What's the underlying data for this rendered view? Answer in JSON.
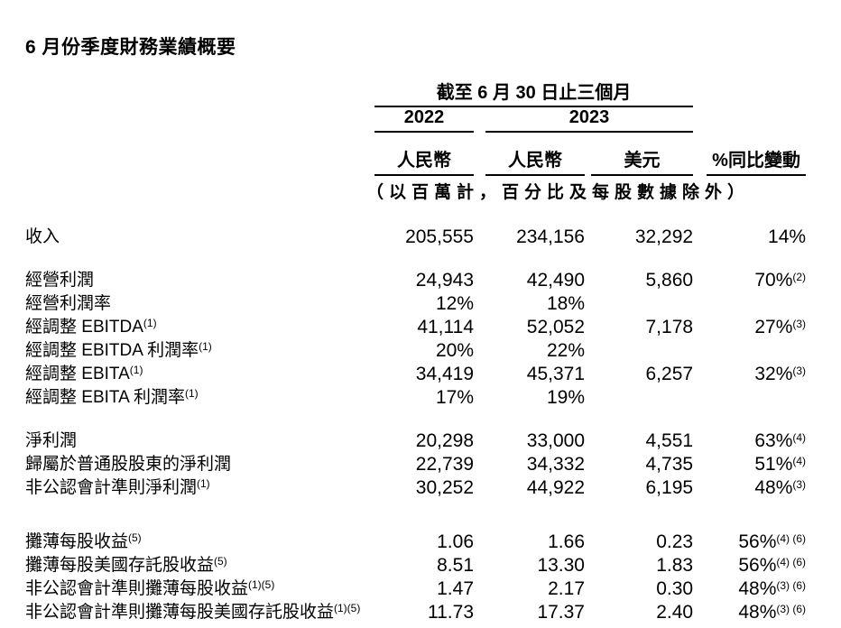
{
  "page": {
    "title": "6 月份季度財務業績概要",
    "background_color": "#ffffff",
    "text_color": "#000000",
    "rule_color": "#000000"
  },
  "table": {
    "period_header": "截至 6 月 30 日止三個月",
    "year_headers": [
      "2022",
      "2023"
    ],
    "column_headers": [
      "人民幣",
      "人民幣",
      "美元",
      "%同比變動"
    ],
    "units_note": "（以百萬計，百分比及每股數據除外）",
    "rows": [
      {
        "label": "收入",
        "label_sup": "",
        "values": [
          "205,555",
          "234,156",
          "32,292"
        ],
        "yoy": "14%",
        "yoy_sup": "",
        "gap_before": 22
      },
      {
        "label": "經營利潤",
        "label_sup": "",
        "values": [
          "24,943",
          "42,490",
          "5,860"
        ],
        "yoy": "70%",
        "yoy_sup": "(2)",
        "gap_before": 22
      },
      {
        "label": "經營利潤率",
        "label_sup": "",
        "values": [
          "12%",
          "18%",
          ""
        ],
        "yoy": "",
        "yoy_sup": "",
        "gap_before": 0
      },
      {
        "label": "經調整 EBITDA",
        "label_sup": "(1)",
        "values": [
          "41,114",
          "52,052",
          "7,178"
        ],
        "yoy": "27%",
        "yoy_sup": "(3)",
        "gap_before": 0
      },
      {
        "label": "經調整 EBITDA 利潤率",
        "label_sup": "(1)",
        "values": [
          "20%",
          "22%",
          ""
        ],
        "yoy": "",
        "yoy_sup": "",
        "gap_before": 0
      },
      {
        "label": "經調整 EBITA",
        "label_sup": "(1)",
        "values": [
          "34,419",
          "45,371",
          "6,257"
        ],
        "yoy": "32%",
        "yoy_sup": "(3)",
        "gap_before": 0
      },
      {
        "label": "經調整 EBITA 利潤率",
        "label_sup": "(1)",
        "values": [
          "17%",
          "19%",
          ""
        ],
        "yoy": "",
        "yoy_sup": "",
        "gap_before": 0
      },
      {
        "label": "淨利潤",
        "label_sup": "",
        "values": [
          "20,298",
          "33,000",
          "4,551"
        ],
        "yoy": "63%",
        "yoy_sup": "(4)",
        "gap_before": 22
      },
      {
        "label": "歸屬於普通股股東的淨利潤",
        "label_sup": "",
        "values": [
          "22,739",
          "34,332",
          "4,735"
        ],
        "yoy": "51%",
        "yoy_sup": "(4)",
        "gap_before": 0
      },
      {
        "label": "非公認會計準則淨利潤",
        "label_sup": "(1)",
        "values": [
          "30,252",
          "44,922",
          "6,195"
        ],
        "yoy": "48%",
        "yoy_sup": "(3)",
        "gap_before": 0
      },
      {
        "label": "攤薄每股收益",
        "label_sup": "(5)",
        "values": [
          "1.06",
          "1.66",
          "0.23"
        ],
        "yoy": "56%",
        "yoy_sup": "(4) (6)",
        "gap_before": 34
      },
      {
        "label": "攤薄每股美國存託股收益",
        "label_sup": "(5)",
        "values": [
          "8.51",
          "13.30",
          "1.83"
        ],
        "yoy": "56%",
        "yoy_sup": "(4) (6)",
        "gap_before": 0
      },
      {
        "label": "非公認會計準則攤薄每股收益",
        "label_sup": "(1)(5)",
        "values": [
          "1.47",
          "2.17",
          "0.30"
        ],
        "yoy": "48%",
        "yoy_sup": "(3) (6)",
        "gap_before": 0
      },
      {
        "label": "非公認會計準則攤薄每股美國存託股收益",
        "label_sup": "(1)(5)",
        "values": [
          "11.73",
          "17.37",
          "2.40"
        ],
        "yoy": "48%",
        "yoy_sup": "(3) (6)",
        "gap_before": 0
      }
    ]
  }
}
